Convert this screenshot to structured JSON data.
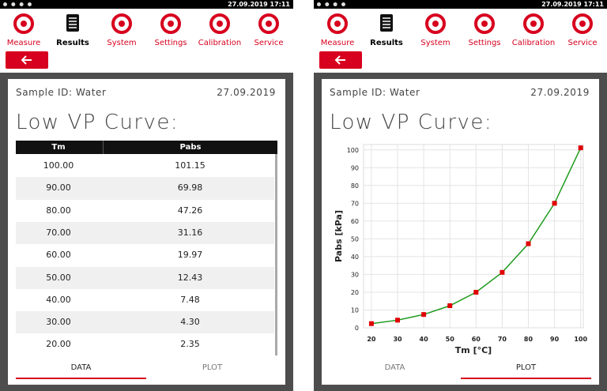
{
  "status_bar": {
    "datetime": "27.09.2019 17:11"
  },
  "nav": {
    "items": [
      "Measure",
      "Results",
      "System",
      "Settings",
      "Calibration",
      "Service"
    ],
    "active": 1
  },
  "tabs": [
    "DATA",
    "PLOT"
  ],
  "screens": [
    {
      "sample_id": "Sample ID: Water",
      "date": "27.09.2019",
      "heading": "Low VP Curve:",
      "active_tab": 0,
      "table": {
        "columns": [
          "Tm",
          "Pabs"
        ],
        "rows": [
          [
            "100.00",
            "101.15"
          ],
          [
            "90.00",
            "69.98"
          ],
          [
            "80.00",
            "47.26"
          ],
          [
            "70.00",
            "31.16"
          ],
          [
            "60.00",
            "19.97"
          ],
          [
            "50.00",
            "12.43"
          ],
          [
            "40.00",
            "7.48"
          ],
          [
            "30.00",
            "4.30"
          ],
          [
            "20.00",
            "2.35"
          ]
        ]
      }
    },
    {
      "sample_id": "Sample ID: Water",
      "date": "27.09.2019",
      "heading": "Low VP Curve:",
      "active_tab": 1
    }
  ],
  "chart_data": {
    "type": "line",
    "x_label": "Tm [°C]",
    "y_label": "Pabs [kPa]",
    "x": [
      20,
      30,
      40,
      50,
      60,
      70,
      80,
      90,
      100
    ],
    "values": [
      2.35,
      4.3,
      7.48,
      12.43,
      19.97,
      31.16,
      47.26,
      69.98,
      101.15
    ],
    "color": "#1e9b1e",
    "marker_color": "#e00000",
    "xlim": [
      17,
      101
    ],
    "xticks": [
      20,
      30,
      40,
      50,
      60,
      70,
      80,
      90,
      100
    ],
    "ylim": [
      0,
      103
    ],
    "yticks": [
      0,
      10,
      20,
      30,
      40,
      50,
      60,
      70,
      80,
      90,
      100
    ],
    "grid": true
  }
}
